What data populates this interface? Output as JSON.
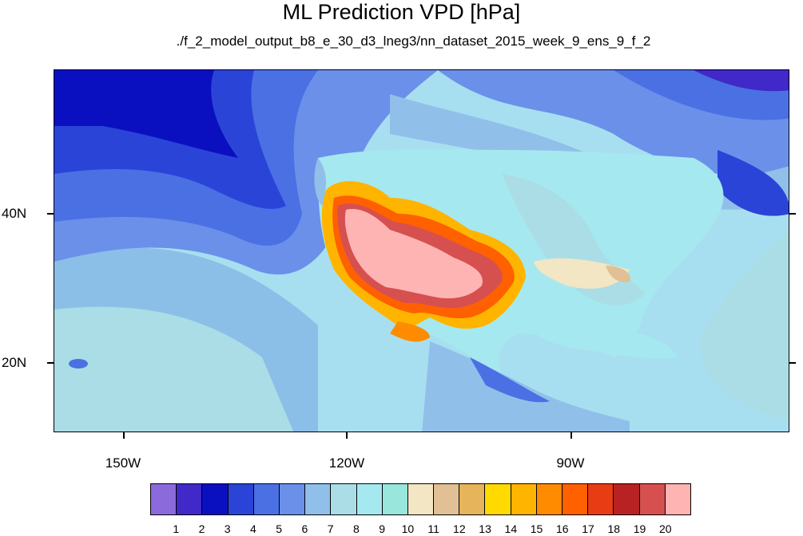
{
  "title": "ML Prediction VPD [hPa]",
  "subtitle": "./f_2_model_output_b8_e_30_d3_lneg3/nn_dataset_2015_week_9_ens_9_f_2",
  "lat_labels": [
    "40N",
    "20N"
  ],
  "lon_labels": [
    "150W",
    "120W",
    "90W"
  ],
  "colorbar": {
    "colors": [
      "#8b6bdb",
      "#4128c8",
      "#0a10c0",
      "#2a44d8",
      "#4a70e4",
      "#6b90ea",
      "#90c0ea",
      "#abdde6",
      "#a6e8f0",
      "#98e6dc",
      "#f2e6c4",
      "#e0c094",
      "#e6b45a",
      "#ffda00",
      "#ffb400",
      "#ff8c00",
      "#ff6000",
      "#e83c14",
      "#b82222",
      "#d65050",
      "#ffb4b4"
    ],
    "labels": [
      "1",
      "2",
      "3",
      "4",
      "5",
      "6",
      "7",
      "8",
      "9",
      "10",
      "11",
      "12",
      "13",
      "14",
      "15",
      "16",
      "17",
      "18",
      "19",
      "20"
    ]
  }
}
